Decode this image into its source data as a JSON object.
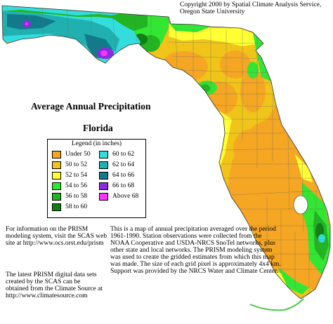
{
  "copyright": "Copyright 2000 by Spatial Climate Analysis Service, Oregon State University",
  "title": "Average Annual Precipitation",
  "subtitle": "Florida",
  "legend": {
    "title": "Legend (in inches)",
    "items": [
      {
        "label": "Under 50",
        "color": "#f5a623"
      },
      {
        "label": "50 to 52",
        "color": "#f0c419"
      },
      {
        "label": "52 to 54",
        "color": "#ffff33"
      },
      {
        "label": "54 to 56",
        "color": "#33e633"
      },
      {
        "label": "56 to 58",
        "color": "#22b422"
      },
      {
        "label": "58 to 60",
        "color": "#127f12"
      },
      {
        "label": "60 to 62",
        "color": "#33dddd"
      },
      {
        "label": "62 to 64",
        "color": "#20b0b0"
      },
      {
        "label": "64 to 66",
        "color": "#127a8a"
      },
      {
        "label": "66 to 68",
        "color": "#8a2be2"
      },
      {
        "label": "Above 68",
        "color": "#ff33ff"
      }
    ]
  },
  "info_left_1": "For information on the PRISM modeling system, visit the SCAS web site at http://www.ocs.orst.edu/prism",
  "info_left_2": "The latest PRISM digital data sets created by the SCAS can be obtained from the Climate Source at http://www.climatesource.com",
  "info_right": "This is a map of annual precipitation averaged over the period 1961-1990. Station observations were collected from the NOAA Cooperative and USDA-NRCS SnoTel networks, plus other state and local networks. The PRISM modeling system was used to create the gridded estimates from which this map was made. The size of each grid pixel is approximately 4x4 km. Support was provided by the NRCS Water and Climate Center."
}
